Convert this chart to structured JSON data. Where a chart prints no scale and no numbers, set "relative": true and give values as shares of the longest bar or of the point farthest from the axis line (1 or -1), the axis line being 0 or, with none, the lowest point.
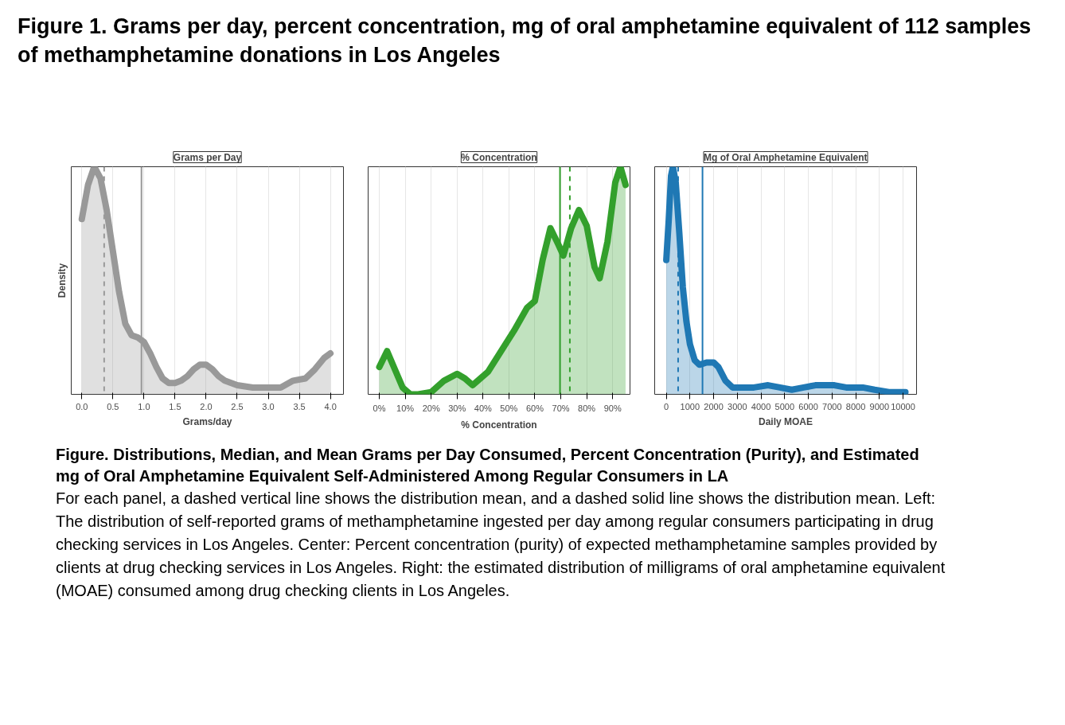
{
  "chart_data": [
    {
      "type": "other",
      "title": "Figure 1. Grams per day, percent concentration, mg of oral amphetamine equivalent of 112 samples of methamphetamine donations in Los Angeles"
    },
    {
      "type": "area",
      "title": "Grams per Day",
      "xlabel": "Grams/day",
      "ylabel": "Density",
      "relative": true,
      "grid": true,
      "tick_labels": "x",
      "line_style": "solid",
      "xlim": [
        -0.17,
        4.21
      ],
      "xticks": [
        {
          "value": 0,
          "label": "0.0"
        },
        0.5,
        {
          "value": 1,
          "label": "1.0"
        },
        1.5,
        {
          "value": 2,
          "label": "2.0"
        },
        2.5,
        {
          "value": 3,
          "label": "3.0"
        },
        3.5,
        {
          "value": 4,
          "label": "4.0"
        }
      ],
      "series": [
        {
          "color": "#999999",
          "x": [
            0,
            0.1,
            0.2,
            0.3,
            0.4,
            0.5,
            0.6,
            0.7,
            0.8,
            0.9,
            1.0,
            1.1,
            1.2,
            1.3,
            1.4,
            1.5,
            1.6,
            1.7,
            1.8,
            1.9,
            2.0,
            2.1,
            2.2,
            2.3,
            2.5,
            2.75,
            3.0,
            3.2,
            3.4,
            3.6,
            3.75,
            3.9,
            4.0
          ],
          "values": [
            0.77,
            0.92,
            1.0,
            0.95,
            0.81,
            0.63,
            0.45,
            0.31,
            0.26,
            0.25,
            0.23,
            0.18,
            0.12,
            0.07,
            0.05,
            0.05,
            0.06,
            0.08,
            0.11,
            0.13,
            0.13,
            0.11,
            0.08,
            0.06,
            0.04,
            0.03,
            0.03,
            0.03,
            0.06,
            0.07,
            0.11,
            0.16,
            0.18
          ]
        }
      ],
      "ref_lines": [
        {
          "axis": "x",
          "value": 0.36,
          "color": "#999999",
          "line_style": "dashed"
        },
        {
          "axis": "x",
          "value": 0.96,
          "color": "#999999",
          "line_style": "solid"
        }
      ]
    },
    {
      "type": "area",
      "title": "% Concentration",
      "xlabel": "% Concentration",
      "relative": true,
      "grid": true,
      "tick_labels": "x",
      "line_style": "solid",
      "xlim": [
        -4.3,
        96.7
      ],
      "xticks": [
        {
          "value": 0,
          "label": "0%"
        },
        {
          "value": 10,
          "label": "10%"
        },
        {
          "value": 20,
          "label": "20%"
        },
        {
          "value": 30,
          "label": "30%"
        },
        {
          "value": 40,
          "label": "40%"
        },
        {
          "value": 50,
          "label": "50%"
        },
        {
          "value": 60,
          "label": "60%"
        },
        {
          "value": 70,
          "label": "70%"
        },
        {
          "value": 80,
          "label": "80%"
        },
        {
          "value": 90,
          "label": "90%"
        }
      ],
      "series": [
        {
          "color": "#33a02c",
          "x": [
            0,
            3,
            6,
            9,
            12,
            15,
            20,
            25,
            30,
            33,
            36,
            42,
            47,
            52,
            57,
            60,
            63,
            66,
            69,
            71,
            74,
            77,
            80,
            83,
            85,
            88,
            91,
            93,
            95
          ],
          "values": [
            0.12,
            0.19,
            0.11,
            0.03,
            0.0,
            0.0,
            0.01,
            0.06,
            0.09,
            0.07,
            0.04,
            0.1,
            0.19,
            0.28,
            0.38,
            0.41,
            0.59,
            0.73,
            0.66,
            0.61,
            0.73,
            0.81,
            0.74,
            0.56,
            0.51,
            0.67,
            0.93,
            1.0,
            0.92
          ]
        }
      ],
      "ref_lines": [
        {
          "axis": "x",
          "value": 69.7,
          "color": "#33a02c",
          "line_style": "solid"
        },
        {
          "axis": "x",
          "value": 73.5,
          "color": "#33a02c",
          "line_style": "dashed"
        }
      ]
    },
    {
      "type": "area",
      "title": "Mg of Oral Amphetamine Equivalent",
      "xlabel": "Daily MOAE",
      "relative": true,
      "grid": true,
      "tick_labels": "x",
      "line_style": "solid",
      "xlim": [
        -490,
        10570
      ],
      "xticks": [
        0,
        1000,
        2000,
        3000,
        4000,
        5000,
        6000,
        7000,
        8000,
        9000,
        10000
      ],
      "series": [
        {
          "color": "#1f78b4",
          "x": [
            0,
            100,
            200,
            280,
            400,
            550,
            700,
            850,
            1000,
            1200,
            1400,
            1700,
            2000,
            2200,
            2500,
            2800,
            3200,
            3700,
            4300,
            4800,
            5300,
            5800,
            6300,
            6700,
            7100,
            7600,
            8300,
            8800,
            9400,
            10100
          ],
          "values": [
            0.59,
            0.76,
            0.96,
            1.0,
            0.93,
            0.71,
            0.47,
            0.32,
            0.22,
            0.15,
            0.13,
            0.14,
            0.14,
            0.12,
            0.06,
            0.03,
            0.03,
            0.03,
            0.04,
            0.03,
            0.02,
            0.03,
            0.04,
            0.04,
            0.04,
            0.03,
            0.03,
            0.02,
            0.01,
            0.01
          ]
        }
      ],
      "ref_lines": [
        {
          "axis": "x",
          "value": 500,
          "color": "#1f78b4",
          "line_style": "dashed"
        },
        {
          "axis": "x",
          "value": 1530,
          "color": "#1f78b4",
          "line_style": "solid"
        }
      ]
    },
    {
      "type": "other",
      "title": "Figure. Distributions, Median, and Mean Grams per Day Consumed, Percent Concentration (Purity), and Estimated mg of Oral Amphetamine Equivalent Self-Administered Among Regular Consumers in LA",
      "annotations": [
        "For each panel, a dashed vertical line shows the distribution mean, and a dashed solid line shows the distribution mean. Left: The distribution of self-reported grams of methamphetamine ingested per day among regular consumers participating in drug checking services in Los Angeles. Center: Percent concentration (purity) of expected methamphetamine samples provided by clients at drug checking services in Los Angeles. Right: the estimated distribution of milligrams of oral amphetamine equivalent (MOAE) consumed among drug checking clients in Los Angeles."
      ]
    }
  ]
}
